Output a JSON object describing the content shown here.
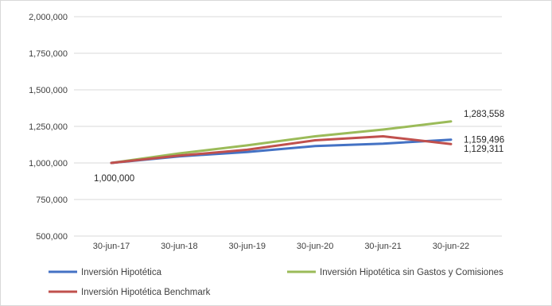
{
  "chart_data": {
    "type": "line",
    "title": "",
    "xlabel": "",
    "ylabel": "",
    "categories": [
      "30-jun-17",
      "30-jun-18",
      "30-jun-19",
      "30-jun-20",
      "30-jun-21",
      "30-jun-22"
    ],
    "ylim": [
      500000,
      2000000
    ],
    "yticks": [
      500000,
      750000,
      1000000,
      1250000,
      1500000,
      1750000,
      2000000
    ],
    "ytick_labels": [
      "500,000",
      "750,000",
      "1,000,000",
      "1,250,000",
      "1,500,000",
      "1,750,000",
      "2,000,000"
    ],
    "grid": true,
    "legend_position": "bottom",
    "series": [
      {
        "name": "Inversión Hipotética",
        "color": "#4472C4",
        "values": [
          1000000,
          1045000,
          1075000,
          1115000,
          1132000,
          1159496
        ]
      },
      {
        "name": "Inversión Hipotética sin Gastos y Comisiones",
        "color": "#9BBB59",
        "values": [
          1000000,
          1065000,
          1120000,
          1182000,
          1228000,
          1283558
        ]
      },
      {
        "name": "Inversión Hipotética Benchmark",
        "color": "#C0504D",
        "values": [
          1000000,
          1050000,
          1090000,
          1155000,
          1182000,
          1129311
        ]
      }
    ],
    "annotations": [
      {
        "text": "1,000,000",
        "series": 0,
        "point": 0
      },
      {
        "text": "1,283,558",
        "series": 1,
        "point": 5
      },
      {
        "text": "1,159,496",
        "series": 0,
        "point": 5
      },
      {
        "text": "1,129,311",
        "series": 2,
        "point": 5
      }
    ]
  }
}
